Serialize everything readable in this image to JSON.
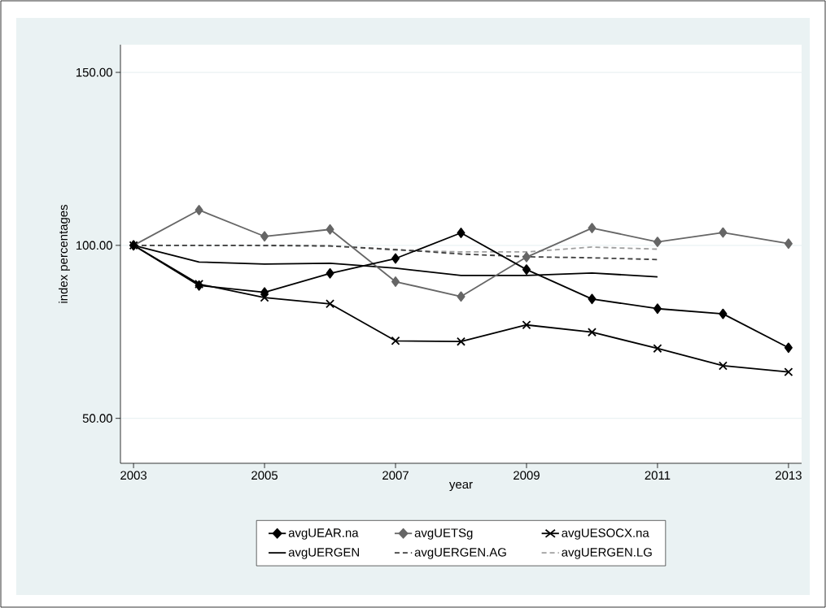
{
  "chart_data": {
    "type": "line",
    "xlabel": "year",
    "ylabel": "index percentages",
    "x": [
      2003,
      2004,
      2005,
      2006,
      2007,
      2008,
      2009,
      2010,
      2011,
      2012,
      2013
    ],
    "xlim": [
      2002.8,
      2013.2
    ],
    "xticks": [
      2003,
      2005,
      2007,
      2009,
      2011,
      2013
    ],
    "ylim": [
      37,
      158
    ],
    "yticks": [
      {
        "value": 50,
        "label": "50.00"
      },
      {
        "value": 100,
        "label": "100.00"
      },
      {
        "value": 150,
        "label": "150.00"
      }
    ],
    "grid": "y",
    "legend": "bottom",
    "line_style": "solid",
    "series": [
      {
        "name": "avgUEAR.na",
        "color": "#000000",
        "marker": "diamond",
        "values": [
          100,
          88.4,
          86.4,
          91.9,
          96.2,
          103.6,
          93.0,
          84.5,
          81.7,
          80.2,
          70.4
        ]
      },
      {
        "name": "avgUETSg",
        "color": "#666666",
        "marker": "diamond",
        "values": [
          100,
          110.2,
          102.6,
          104.6,
          89.5,
          85.2,
          96.6,
          105.0,
          101.0,
          103.7,
          100.5
        ]
      },
      {
        "name": "avgUESOCX.na",
        "color": "#000000",
        "marker": "cross",
        "values": [
          100,
          88.8,
          84.9,
          83.1,
          72.4,
          72.2,
          77.0,
          74.9,
          70.2,
          65.2,
          63.4
        ]
      },
      {
        "name": "avgUERGEN",
        "color": "#000000",
        "marker": "none",
        "x": [
          2003,
          2004,
          2005,
          2006,
          2007,
          2008,
          2009,
          2010,
          2011
        ],
        "values": [
          100,
          95.2,
          94.6,
          94.8,
          93.4,
          91.3,
          91.3,
          92.0,
          90.9
        ]
      },
      {
        "name": "avgUERGEN.AG",
        "color": "#404040",
        "marker": "none",
        "line_style": "dashed",
        "x": [
          2003,
          2004,
          2005,
          2006,
          2007,
          2008,
          2009,
          2010,
          2011
        ],
        "values": [
          100,
          100,
          100,
          99.8,
          98.8,
          97.5,
          96.7,
          96.4,
          95.9
        ]
      },
      {
        "name": "avgUERGEN.LG",
        "color": "#a0a0a0",
        "marker": "none",
        "line_style": "dashed",
        "x": [
          2003,
          2004,
          2005,
          2006,
          2007,
          2008,
          2009,
          2010,
          2011
        ],
        "values": [
          100,
          100,
          99.9,
          99.9,
          98.6,
          98.1,
          98.1,
          99.5,
          98.9
        ]
      }
    ]
  }
}
